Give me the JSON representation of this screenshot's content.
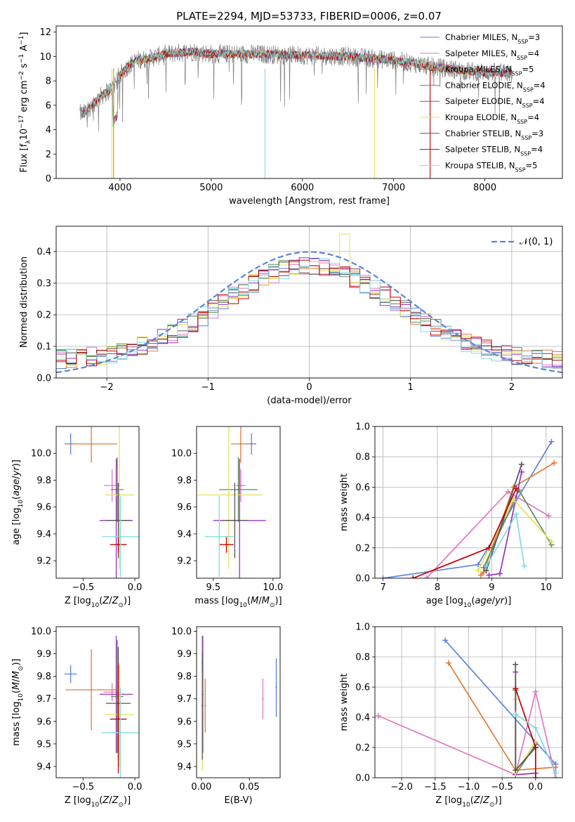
{
  "chart_data": [
    {
      "type": "line",
      "title": "PLATE=2294, MJD=53733, FIBERID=0006, z=0.07",
      "xlabel": "wavelength [Angstrom, rest frame]",
      "ylabel": "Flux [f_λ 10^-17 erg cm^-2 s^-1 A^-1]",
      "xlim": [
        3300,
        8850
      ],
      "ylim": [
        0,
        12.5
      ],
      "xticks": [
        4000,
        5000,
        6000,
        7000,
        8000
      ],
      "yticks": [
        0,
        2,
        4,
        6,
        8,
        10,
        12
      ],
      "legend_position": "top-right",
      "continuum_x": [
        3600,
        3700,
        3800,
        3900,
        4000,
        4100,
        4200,
        4300,
        4500,
        4800,
        5000,
        5500,
        6000,
        6500,
        7000,
        7400,
        7800,
        8300
      ],
      "continuum_y": [
        5.3,
        6.1,
        6.8,
        7.3,
        8.5,
        9.3,
        9.7,
        9.8,
        10.2,
        10.4,
        10.2,
        10.2,
        10.1,
        10.0,
        9.7,
        9.2,
        8.8,
        8.6
      ],
      "series": [
        {
          "name": "Chabrier MILES, N_SSP=3",
          "color": "#5b85d9"
        },
        {
          "name": "Salpeter MILES, N_SSP=4",
          "color": "#e377c2"
        },
        {
          "name": "Kroupa MILES, N_SSP=5",
          "color": "#e07b39"
        },
        {
          "name": "Chabrier ELODIE, N_SSP=4",
          "color": "#5f8a5f"
        },
        {
          "name": "Salpeter ELODIE, N_SSP=4",
          "color": "#9b30c0"
        },
        {
          "name": "Kroupa ELODIE, N_SSP=4",
          "color": "#e6e05a"
        },
        {
          "name": "Chabrier STELIB, N_SSP=3",
          "color": "#555555"
        },
        {
          "name": "Salpeter STELIB, N_SSP=4",
          "color": "#c00000"
        },
        {
          "name": "Kroupa STELIB, N_SSP=5",
          "color": "#80dde0"
        }
      ]
    },
    {
      "type": "area",
      "xlabel": "(data-model)/error",
      "ylabel": "Normed distribution",
      "xlim": [
        -2.5,
        2.5
      ],
      "ylim": [
        0,
        0.48
      ],
      "xticks": [
        -2,
        -1,
        0,
        1,
        2
      ],
      "yticks": [
        0.0,
        0.1,
        0.2,
        0.3,
        0.4
      ],
      "grid": true,
      "legend_position": "top-right",
      "gaussian_label": "𝒩(0, 1)",
      "histogram_bin_width": 0.1,
      "histogram_approx_peak": 0.35
    },
    {
      "type": "scatter",
      "xlabel": "Z [log10(Z/Z☉)]",
      "ylabel": "age [log10(age/yr)]",
      "xlim": [
        -0.76,
        0.04
      ],
      "ylim": [
        9.07,
        10.2
      ],
      "xticks": [
        -0.5,
        0.0
      ],
      "yticks": [
        9.2,
        9.4,
        9.6,
        9.8,
        10.0
      ],
      "points": [
        {
          "x": -0.62,
          "xe": 0.06,
          "y": 10.07,
          "ye": 0.08
        },
        {
          "x": -0.22,
          "xe": 0.08,
          "y": 9.76,
          "ye": 0.12
        },
        {
          "x": -0.42,
          "xe": 0.25,
          "y": 10.07,
          "ye": 0.14
        },
        {
          "x": -0.17,
          "xe": 0.06,
          "y": 9.73,
          "ye": 0.24
        },
        {
          "x": -0.18,
          "xe": 0.16,
          "y": 9.5,
          "ye": 0.46
        },
        {
          "x": -0.15,
          "xe": 0.14,
          "y": 9.69,
          "ye": 0.55
        },
        {
          "x": -0.16,
          "xe": 0.12,
          "y": 9.5,
          "ye": 0.28
        },
        {
          "x": -0.16,
          "xe": 0.08,
          "y": 9.32,
          "ye": 0.06
        },
        {
          "x": -0.14,
          "xe": 0.18,
          "y": 9.38,
          "ye": 0.3
        }
      ]
    },
    {
      "type": "scatter",
      "xlabel": "mass [log10(M/M☉)]",
      "ylabel": "",
      "xlim": [
        9.36,
        10.06
      ],
      "ylim": [
        9.07,
        10.2
      ],
      "xticks": [
        9.5,
        10.0
      ],
      "yticks": [
        9.2,
        9.4,
        9.6,
        9.8,
        10.0
      ],
      "points": [
        {
          "x": 9.82,
          "xe": 0.04,
          "y": 10.07,
          "ye": 0.08
        },
        {
          "x": 9.73,
          "xe": 0.04,
          "y": 9.76,
          "ye": 0.12
        },
        {
          "x": 9.73,
          "xe": 0.08,
          "y": 10.07,
          "ye": 0.14
        },
        {
          "x": 9.71,
          "xe": 0.16,
          "y": 9.73,
          "ye": 0.24
        },
        {
          "x": 9.72,
          "xe": 0.22,
          "y": 9.5,
          "ye": 0.46
        },
        {
          "x": 9.63,
          "xe": 0.28,
          "y": 9.69,
          "ye": 0.55
        },
        {
          "x": 9.68,
          "xe": 0.11,
          "y": 9.5,
          "ye": 0.28
        },
        {
          "x": 9.61,
          "xe": 0.06,
          "y": 9.32,
          "ye": 0.06
        },
        {
          "x": 9.55,
          "xe": 0.12,
          "y": 9.38,
          "ye": 0.3
        }
      ]
    },
    {
      "type": "line",
      "xlabel": "age [log10(age/yr)]",
      "ylabel": "mass weight",
      "xlim": [
        6.85,
        10.3
      ],
      "ylim": [
        0,
        1.0
      ],
      "xticks": [
        7,
        8,
        9,
        10
      ],
      "yticks": [
        0.0,
        0.2,
        0.4,
        0.6,
        0.8,
        1.0
      ],
      "grid": true,
      "series": [
        {
          "x": [
            7.0,
            8.75,
            10.1
          ],
          "y": [
            0.0,
            0.09,
            0.9
          ]
        },
        {
          "x": [
            7.8,
            9.3,
            10.05
          ],
          "y": [
            0.0,
            0.57,
            0.41
          ]
        },
        {
          "x": [
            8.8,
            8.85,
            9.4,
            10.15
          ],
          "y": [
            0.02,
            0.04,
            0.6,
            0.76
          ]
        },
        {
          "x": [
            8.85,
            9.5,
            10.1
          ],
          "y": [
            0.07,
            0.58,
            0.22
          ]
        },
        {
          "x": [
            8.95,
            9.15,
            9.55
          ],
          "y": [
            0.02,
            0.03,
            0.7
          ]
        },
        {
          "x": [
            8.75,
            9.4,
            10.1
          ],
          "y": [
            0.05,
            0.52,
            0.24
          ]
        },
        {
          "x": [
            8.9,
            9.55
          ],
          "y": [
            0.05,
            0.75
          ]
        },
        {
          "x": [
            7.55,
            8.95,
            9.45
          ],
          "y": [
            0.0,
            0.2,
            0.59
          ]
        },
        {
          "x": [
            8.9,
            9.45,
            9.6
          ],
          "y": [
            0.08,
            0.42,
            0.08
          ]
        }
      ]
    },
    {
      "type": "scatter",
      "xlabel": "Z [log10(Z/Z☉)]",
      "ylabel": "mass [log10(M/M☉)]",
      "xlim": [
        -0.76,
        0.04
      ],
      "ylim": [
        9.35,
        10.02
      ],
      "xticks": [
        -0.5,
        0.0
      ],
      "yticks": [
        9.4,
        9.5,
        9.6,
        9.7,
        9.8,
        9.9,
        10.0
      ],
      "points": [
        {
          "x": -0.62,
          "xe": 0.06,
          "y": 9.81,
          "ye": 0.04
        },
        {
          "x": -0.22,
          "xe": 0.08,
          "y": 9.73,
          "ye": 0.04
        },
        {
          "x": -0.42,
          "xe": 0.25,
          "y": 9.74,
          "ye": 0.18
        },
        {
          "x": -0.17,
          "xe": 0.06,
          "y": 9.71,
          "ye": 0.25
        },
        {
          "x": -0.18,
          "xe": 0.16,
          "y": 9.72,
          "ye": 0.26
        },
        {
          "x": -0.15,
          "xe": 0.14,
          "y": 9.63,
          "ye": 0.23
        },
        {
          "x": -0.16,
          "xe": 0.12,
          "y": 9.68,
          "ye": 0.25
        },
        {
          "x": -0.16,
          "xe": 0.08,
          "y": 9.61,
          "ye": 0.24
        },
        {
          "x": -0.14,
          "xe": 0.18,
          "y": 9.55,
          "ye": 0.2
        }
      ]
    },
    {
      "type": "scatter",
      "xlabel": "E(B-V)",
      "ylabel": "",
      "xlim": [
        -0.005,
        0.082
      ],
      "ylim": [
        9.35,
        10.02
      ],
      "xticks": [
        0.0,
        0.05
      ],
      "yticks": [
        9.4,
        9.5,
        9.6,
        9.7,
        9.8,
        9.9,
        10.0
      ],
      "points": [
        {
          "x": 0.078,
          "y": 9.75,
          "ye": 0.13
        },
        {
          "x": 0.064,
          "y": 9.7,
          "ye": 0.09
        },
        {
          "x": 0.004,
          "y": 9.67,
          "ye": 0.12
        },
        {
          "x": 0.001,
          "y": 9.86,
          "ye": 0.12
        },
        {
          "x": 0.0015,
          "y": 9.72,
          "ye": 0.26
        },
        {
          "x": 0.001,
          "y": 9.6,
          "ye": 0.22
        },
        {
          "x": 0.001,
          "y": 9.67,
          "ye": 0.24
        }
      ]
    },
    {
      "type": "line",
      "xlabel": "Z [log10(Z/Z☉)]",
      "ylabel": "mass weight",
      "xlim": [
        -2.4,
        0.4
      ],
      "ylim": [
        0,
        1.0
      ],
      "xticks": [
        -2.0,
        -1.5,
        -1.0,
        -0.5,
        0.0
      ],
      "yticks": [
        0.0,
        0.2,
        0.4,
        0.6,
        0.8,
        1.0
      ],
      "grid": true,
      "series": [
        {
          "x": [
            -1.35,
            0.3,
            0.3
          ],
          "y": [
            0.91,
            0.09,
            0.0
          ]
        },
        {
          "x": [
            -2.35,
            -0.3,
            0.0,
            0.3
          ],
          "y": [
            0.41,
            0.02,
            0.57,
            0.0
          ]
        },
        {
          "x": [
            -1.3,
            -0.3,
            0.3
          ],
          "y": [
            0.76,
            0.05,
            0.07
          ]
        },
        {
          "x": [
            -0.3,
            -0.3,
            0.0
          ],
          "y": [
            0.58,
            0.02,
            0.22
          ]
        },
        {
          "x": [
            -0.3,
            -0.3,
            0.0
          ],
          "y": [
            0.7,
            0.02,
            0.03
          ]
        },
        {
          "x": [
            -0.3,
            -0.3,
            0.0
          ],
          "y": [
            0.52,
            0.03,
            0.24
          ]
        },
        {
          "x": [
            -0.3,
            -0.3,
            0.0
          ],
          "y": [
            0.75,
            0.05,
            0.2
          ]
        },
        {
          "x": [
            -0.3,
            0.0,
            0.0
          ],
          "y": [
            0.59,
            0.2,
            0.0
          ]
        },
        {
          "x": [
            -0.3,
            0.0,
            0.3
          ],
          "y": [
            0.42,
            0.33,
            0.03
          ]
        }
      ]
    }
  ]
}
